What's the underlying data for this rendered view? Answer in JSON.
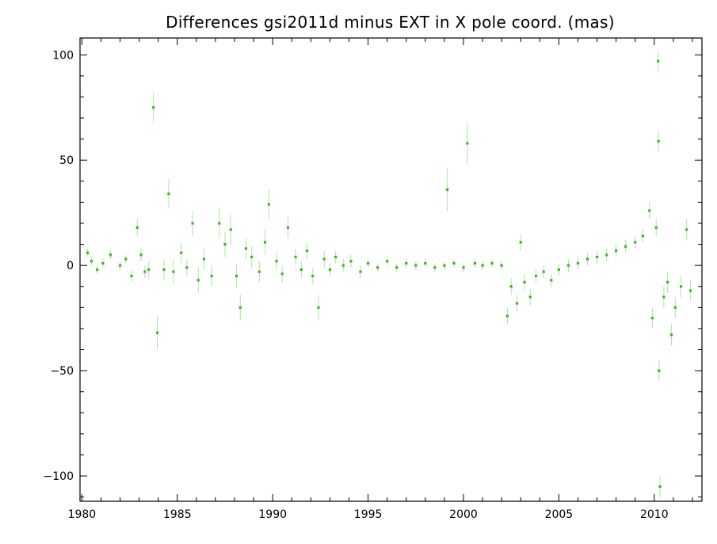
{
  "chart_data": {
    "type": "scatter",
    "title": "Differences gsi2011d minus EXT in X pole coord. (mas)",
    "xlabel": "",
    "ylabel": "",
    "xlim": [
      1979.9,
      2012.5
    ],
    "ylim": [
      -112,
      108
    ],
    "x_ticks": [
      1980,
      1985,
      1990,
      1995,
      2000,
      2005,
      2010
    ],
    "y_ticks": [
      100,
      50,
      0,
      -50,
      -100
    ],
    "x_tick_labels": [
      "1980",
      "1985",
      "1990",
      "1995",
      "2000",
      "2005",
      "2010"
    ],
    "y_tick_labels": [
      "100",
      "50",
      "0",
      "−50",
      "−100"
    ],
    "grid": false,
    "colors": {
      "points": "#3cb521",
      "error_bars": "#b5ddb0",
      "axes": "#000000"
    },
    "series": [
      {
        "values": [
          {
            "x": 1980.3,
            "y": 6,
            "err": 2
          },
          {
            "x": 1980.5,
            "y": 2,
            "err": 2
          },
          {
            "x": 1980.8,
            "y": -2,
            "err": 2
          },
          {
            "x": 1981.1,
            "y": 1,
            "err": 2
          },
          {
            "x": 1981.5,
            "y": 5,
            "err": 2
          },
          {
            "x": 1982.0,
            "y": 0,
            "err": 2
          },
          {
            "x": 1982.3,
            "y": 3,
            "err": 2
          },
          {
            "x": 1982.6,
            "y": -5,
            "err": 3
          },
          {
            "x": 1982.9,
            "y": 18,
            "err": 4
          },
          {
            "x": 1983.1,
            "y": 5,
            "err": 3
          },
          {
            "x": 1983.3,
            "y": -3,
            "err": 3
          },
          {
            "x": 1983.5,
            "y": -2,
            "err": 4
          },
          {
            "x": 1983.75,
            "y": 75,
            "err": 7
          },
          {
            "x": 1983.95,
            "y": -32,
            "err": 8
          },
          {
            "x": 1984.3,
            "y": -2,
            "err": 5
          },
          {
            "x": 1984.55,
            "y": 34,
            "err": 7
          },
          {
            "x": 1984.8,
            "y": -3,
            "err": 6
          },
          {
            "x": 1985.2,
            "y": 6,
            "err": 5
          },
          {
            "x": 1985.5,
            "y": -1,
            "err": 4
          },
          {
            "x": 1985.8,
            "y": 20,
            "err": 6
          },
          {
            "x": 1986.1,
            "y": -7,
            "err": 6
          },
          {
            "x": 1986.4,
            "y": 3,
            "err": 5
          },
          {
            "x": 1986.8,
            "y": -5,
            "err": 5
          },
          {
            "x": 1987.2,
            "y": 20,
            "err": 7
          },
          {
            "x": 1987.5,
            "y": 10,
            "err": 6
          },
          {
            "x": 1987.8,
            "y": 17,
            "err": 7
          },
          {
            "x": 1988.1,
            "y": -5,
            "err": 6
          },
          {
            "x": 1988.3,
            "y": -20,
            "err": 6
          },
          {
            "x": 1988.6,
            "y": 8,
            "err": 5
          },
          {
            "x": 1988.9,
            "y": 4,
            "err": 5
          },
          {
            "x": 1989.3,
            "y": -3,
            "err": 5
          },
          {
            "x": 1989.6,
            "y": 11,
            "err": 6
          },
          {
            "x": 1989.8,
            "y": 29,
            "err": 7
          },
          {
            "x": 1990.2,
            "y": 2,
            "err": 4
          },
          {
            "x": 1990.5,
            "y": -4,
            "err": 4
          },
          {
            "x": 1990.8,
            "y": 18,
            "err": 5
          },
          {
            "x": 1991.2,
            "y": 4,
            "err": 4
          },
          {
            "x": 1991.5,
            "y": -2,
            "err": 4
          },
          {
            "x": 1991.8,
            "y": 7,
            "err": 4
          },
          {
            "x": 1992.1,
            "y": -5,
            "err": 4
          },
          {
            "x": 1992.4,
            "y": -20,
            "err": 6
          },
          {
            "x": 1992.7,
            "y": 3,
            "err": 4
          },
          {
            "x": 1993.0,
            "y": -2,
            "err": 3
          },
          {
            "x": 1993.3,
            "y": 4,
            "err": 3
          },
          {
            "x": 1993.7,
            "y": 0,
            "err": 3
          },
          {
            "x": 1994.1,
            "y": 2,
            "err": 3
          },
          {
            "x": 1994.6,
            "y": -3,
            "err": 3
          },
          {
            "x": 1995.0,
            "y": 1,
            "err": 2
          },
          {
            "x": 1995.5,
            "y": -1,
            "err": 2
          },
          {
            "x": 1996.0,
            "y": 2,
            "err": 2
          },
          {
            "x": 1996.5,
            "y": -1,
            "err": 2
          },
          {
            "x": 1997.0,
            "y": 1,
            "err": 2
          },
          {
            "x": 1997.5,
            "y": 0,
            "err": 2
          },
          {
            "x": 1998.0,
            "y": 1,
            "err": 2
          },
          {
            "x": 1998.5,
            "y": -1,
            "err": 2
          },
          {
            "x": 1999.0,
            "y": 0,
            "err": 2
          },
          {
            "x": 1999.15,
            "y": 36,
            "err": 10
          },
          {
            "x": 1999.5,
            "y": 1,
            "err": 2
          },
          {
            "x": 2000.0,
            "y": -1,
            "err": 2
          },
          {
            "x": 2000.2,
            "y": 58,
            "err": 10
          },
          {
            "x": 2000.6,
            "y": 1,
            "err": 2
          },
          {
            "x": 2001.0,
            "y": 0,
            "err": 2
          },
          {
            "x": 2001.5,
            "y": 1,
            "err": 2
          },
          {
            "x": 2002.0,
            "y": 0,
            "err": 2
          },
          {
            "x": 2002.3,
            "y": -24,
            "err": 4
          },
          {
            "x": 2002.5,
            "y": -10,
            "err": 4
          },
          {
            "x": 2002.8,
            "y": -18,
            "err": 4
          },
          {
            "x": 2003.0,
            "y": 11,
            "err": 4
          },
          {
            "x": 2003.2,
            "y": -8,
            "err": 4
          },
          {
            "x": 2003.5,
            "y": -15,
            "err": 4
          },
          {
            "x": 2003.8,
            "y": -5,
            "err": 3
          },
          {
            "x": 2004.2,
            "y": -3,
            "err": 3
          },
          {
            "x": 2004.6,
            "y": -7,
            "err": 3
          },
          {
            "x": 2005.0,
            "y": -2,
            "err": 3
          },
          {
            "x": 2005.5,
            "y": 0,
            "err": 3
          },
          {
            "x": 2006.0,
            "y": 1,
            "err": 3
          },
          {
            "x": 2006.5,
            "y": 3,
            "err": 3
          },
          {
            "x": 2007.0,
            "y": 4,
            "err": 3
          },
          {
            "x": 2007.5,
            "y": 5,
            "err": 3
          },
          {
            "x": 2008.0,
            "y": 7,
            "err": 3
          },
          {
            "x": 2008.5,
            "y": 9,
            "err": 3
          },
          {
            "x": 2009.0,
            "y": 11,
            "err": 3
          },
          {
            "x": 2009.4,
            "y": 14,
            "err": 3
          },
          {
            "x": 2009.75,
            "y": 26,
            "err": 4
          },
          {
            "x": 2009.9,
            "y": -25,
            "err": 5
          },
          {
            "x": 2010.1,
            "y": 18,
            "err": 4
          },
          {
            "x": 2010.2,
            "y": 97,
            "err": 5
          },
          {
            "x": 2010.22,
            "y": 59,
            "err": 5
          },
          {
            "x": 2010.25,
            "y": -50,
            "err": 5
          },
          {
            "x": 2010.3,
            "y": -105,
            "err": 5
          },
          {
            "x": 2010.5,
            "y": -15,
            "err": 5
          },
          {
            "x": 2010.7,
            "y": -8,
            "err": 5
          },
          {
            "x": 2010.9,
            "y": -33,
            "err": 5
          },
          {
            "x": 2011.1,
            "y": -20,
            "err": 5
          },
          {
            "x": 2011.4,
            "y": -10,
            "err": 5
          },
          {
            "x": 2011.7,
            "y": 17,
            "err": 5
          },
          {
            "x": 2011.9,
            "y": -12,
            "err": 5
          }
        ]
      }
    ]
  }
}
